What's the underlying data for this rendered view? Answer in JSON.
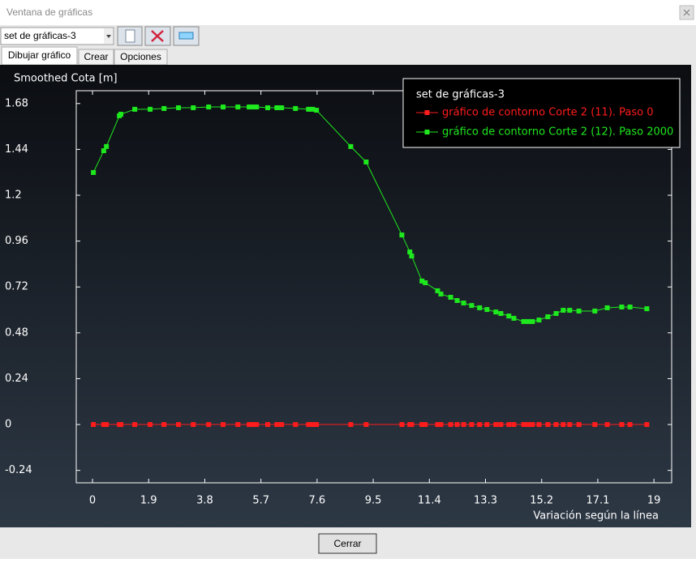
{
  "window": {
    "title": "Ventana de gráficas"
  },
  "toolbar": {
    "dropdown": "set de gráficas-3"
  },
  "tabs": [
    "Dibujar gráfico",
    "Crear",
    "Opciones"
  ],
  "buttons": {
    "close": "Cerrar"
  },
  "chart_data": {
    "type": "line",
    "y_label": "Smoothed Cota [m]",
    "x_label": "Variación según la línea",
    "legend_title": "set de gráficas-3",
    "legend": "upper right",
    "grid": false,
    "xlim": [
      -0.55,
      19.6
    ],
    "ylim": [
      -0.305,
      1.747
    ],
    "xticks": [
      0,
      1.9,
      3.8,
      5.7,
      7.6,
      9.5,
      11.4,
      13.3,
      15.2,
      17.1,
      19
    ],
    "yticks": [
      -0.24,
      0,
      0.24,
      0.48,
      0.72,
      0.96,
      1.2,
      1.44,
      1.68
    ],
    "x": [
      0.03,
      0.38,
      0.47,
      0.91,
      0.96,
      1.43,
      1.95,
      2.42,
      2.91,
      3.41,
      3.93,
      4.42,
      4.92,
      5.3,
      5.41,
      5.55,
      5.93,
      6.24,
      6.4,
      6.87,
      7.31,
      7.45,
      7.58,
      8.74,
      9.26,
      10.47,
      10.74,
      10.8,
      11.15,
      11.26,
      11.68,
      11.79,
      12.12,
      12.34,
      12.56,
      12.83,
      13.1,
      13.35,
      13.65,
      13.82,
      14.09,
      14.26,
      14.59,
      14.75,
      14.89,
      15.11,
      15.41,
      15.69,
      15.93,
      16.15,
      16.46,
      17.0,
      17.42,
      17.91,
      18.19,
      18.76
    ],
    "series": [
      {
        "name": "gráfico de contorno Corte 2 (11). Paso 0",
        "color": "#ff1c1c",
        "values": [
          0,
          0,
          0,
          0,
          0,
          0,
          0,
          0,
          0,
          0,
          0,
          0,
          0,
          0,
          0,
          0,
          0,
          0,
          0,
          0,
          0,
          0,
          0,
          0,
          0,
          0,
          0,
          0,
          0,
          0,
          0,
          0,
          0,
          0,
          0,
          0,
          0,
          0,
          0,
          0,
          0,
          0,
          0,
          0,
          0,
          0,
          0,
          0,
          0,
          0,
          0,
          0,
          0,
          0,
          0,
          0
        ]
      },
      {
        "name": "gráfico de contorno Corte 2 (12). Paso 2000",
        "color": "#1ee81e",
        "values": [
          1.319,
          1.433,
          1.455,
          1.616,
          1.624,
          1.65,
          1.65,
          1.654,
          1.658,
          1.658,
          1.662,
          1.662,
          1.662,
          1.662,
          1.662,
          1.662,
          1.658,
          1.658,
          1.658,
          1.654,
          1.65,
          1.65,
          1.645,
          1.455,
          1.374,
          0.992,
          0.903,
          0.882,
          0.751,
          0.742,
          0.7,
          0.683,
          0.666,
          0.649,
          0.636,
          0.623,
          0.611,
          0.602,
          0.589,
          0.581,
          0.568,
          0.556,
          0.539,
          0.539,
          0.539,
          0.547,
          0.564,
          0.581,
          0.598,
          0.598,
          0.594,
          0.594,
          0.611,
          0.615,
          0.615,
          0.606
        ]
      }
    ]
  }
}
